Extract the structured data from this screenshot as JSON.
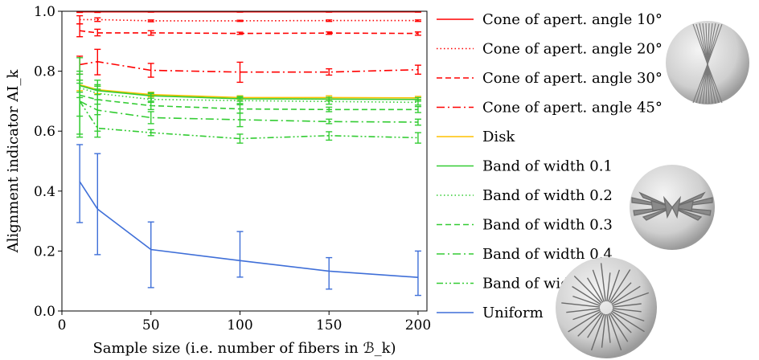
{
  "chart_data": {
    "type": "line",
    "xlabel": "Sample size (i.e. number of fibers in ℬ_k)",
    "ylabel": "Alignment indicator AI_k",
    "xlim": [
      0,
      205
    ],
    "ylim": [
      0.0,
      1.0
    ],
    "x_ticks": [
      0,
      50,
      100,
      150,
      200
    ],
    "y_ticks": [
      0.0,
      0.2,
      0.4,
      0.6,
      0.8,
      1.0
    ],
    "x_tick_labels": [
      "0",
      "50",
      "100",
      "150",
      "200"
    ],
    "y_tick_labels": [
      "0.0",
      "0.2",
      "0.4",
      "0.6",
      "0.8",
      "1.0"
    ],
    "grid": false,
    "legend_position": "right, outside plot",
    "x": [
      10,
      20,
      50,
      100,
      150,
      200
    ],
    "series": [
      {
        "name": "Cone of apert. angle 10°",
        "color": "#ff0000",
        "dash": "solid",
        "values": [
          0.998,
          0.998,
          0.998,
          0.998,
          0.998,
          0.998
        ],
        "lo": [
          0.996,
          0.996,
          0.997,
          0.997,
          0.997,
          0.997
        ],
        "hi": [
          0.999,
          0.999,
          0.999,
          0.999,
          0.999,
          0.999
        ]
      },
      {
        "name": "Cone of apert. angle 20°",
        "color": "#ff0000",
        "dash": "dotted",
        "values": [
          0.972,
          0.972,
          0.968,
          0.968,
          0.969,
          0.969
        ],
        "lo": [
          0.958,
          0.966,
          0.965,
          0.966,
          0.966,
          0.966
        ],
        "hi": [
          0.985,
          0.978,
          0.971,
          0.97,
          0.971,
          0.971
        ]
      },
      {
        "name": "Cone of apert. angle 30°",
        "color": "#ff0000",
        "dash": "dashed",
        "values": [
          0.935,
          0.928,
          0.928,
          0.926,
          0.927,
          0.926
        ],
        "lo": [
          0.915,
          0.918,
          0.92,
          0.923,
          0.923,
          0.92
        ],
        "hi": [
          0.958,
          0.94,
          0.935,
          0.93,
          0.931,
          0.931
        ]
      },
      {
        "name": "Cone of apert. angle 45°",
        "color": "#ff0000",
        "dash": "dashdot",
        "values": [
          0.822,
          0.832,
          0.803,
          0.797,
          0.797,
          0.805
        ],
        "lo": [
          0.79,
          0.788,
          0.78,
          0.763,
          0.787,
          0.79
        ],
        "hi": [
          0.85,
          0.873,
          0.826,
          0.83,
          0.808,
          0.82
        ]
      },
      {
        "name": "Disk",
        "color": "#ffc000",
        "dash": "solid",
        "values": [
          0.755,
          0.738,
          0.722,
          0.712,
          0.712,
          0.711
        ],
        "lo": [
          0.735,
          0.725,
          0.715,
          0.706,
          0.706,
          0.706
        ],
        "hi": [
          0.77,
          0.75,
          0.73,
          0.718,
          0.718,
          0.716
        ]
      },
      {
        "name": "Band of width 0.1",
        "color": "#33cc33",
        "dash": "solid",
        "values": [
          0.752,
          0.735,
          0.718,
          0.708,
          0.707,
          0.706
        ],
        "lo": [
          0.73,
          0.722,
          0.71,
          0.7,
          0.701,
          0.7
        ],
        "hi": [
          0.77,
          0.75,
          0.728,
          0.716,
          0.713,
          0.712
        ]
      },
      {
        "name": "Band of width 0.2",
        "color": "#33cc33",
        "dash": "dotted",
        "values": [
          0.745,
          0.726,
          0.706,
          0.702,
          0.699,
          0.696
        ],
        "lo": [
          0.712,
          0.705,
          0.696,
          0.692,
          0.69,
          0.687
        ],
        "hi": [
          0.845,
          0.77,
          0.725,
          0.712,
          0.707,
          0.705
        ]
      },
      {
        "name": "Band of width 0.3",
        "color": "#33cc33",
        "dash": "dashed",
        "values": [
          0.72,
          0.705,
          0.685,
          0.674,
          0.672,
          0.672
        ],
        "lo": [
          0.65,
          0.655,
          0.672,
          0.66,
          0.665,
          0.662
        ],
        "hi": [
          0.79,
          0.755,
          0.7,
          0.688,
          0.68,
          0.682
        ]
      },
      {
        "name": "Band of width 0.4",
        "color": "#33cc33",
        "dash": "dashdot",
        "values": [
          0.7,
          0.67,
          0.645,
          0.638,
          0.632,
          0.63
        ],
        "lo": [
          0.59,
          0.6,
          0.625,
          0.615,
          0.625,
          0.62
        ],
        "hi": [
          0.8,
          0.74,
          0.665,
          0.66,
          0.64,
          0.64
        ]
      },
      {
        "name": "Band of width 0.5",
        "color": "#33cc33",
        "dash": "dashdotdot",
        "values": [
          0.7,
          0.61,
          0.595,
          0.575,
          0.585,
          0.578
        ],
        "lo": [
          0.58,
          0.58,
          0.585,
          0.56,
          0.57,
          0.56
        ],
        "hi": [
          0.76,
          0.69,
          0.605,
          0.59,
          0.598,
          0.595
        ]
      },
      {
        "name": "Uniform",
        "color": "#3f6fd8",
        "dash": "solid",
        "values": [
          0.432,
          0.34,
          0.205,
          0.168,
          0.133,
          0.112
        ],
        "lo": [
          0.295,
          0.188,
          0.078,
          0.113,
          0.073,
          0.052
        ],
        "hi": [
          0.555,
          0.525,
          0.297,
          0.265,
          0.178,
          0.2
        ]
      }
    ]
  }
}
